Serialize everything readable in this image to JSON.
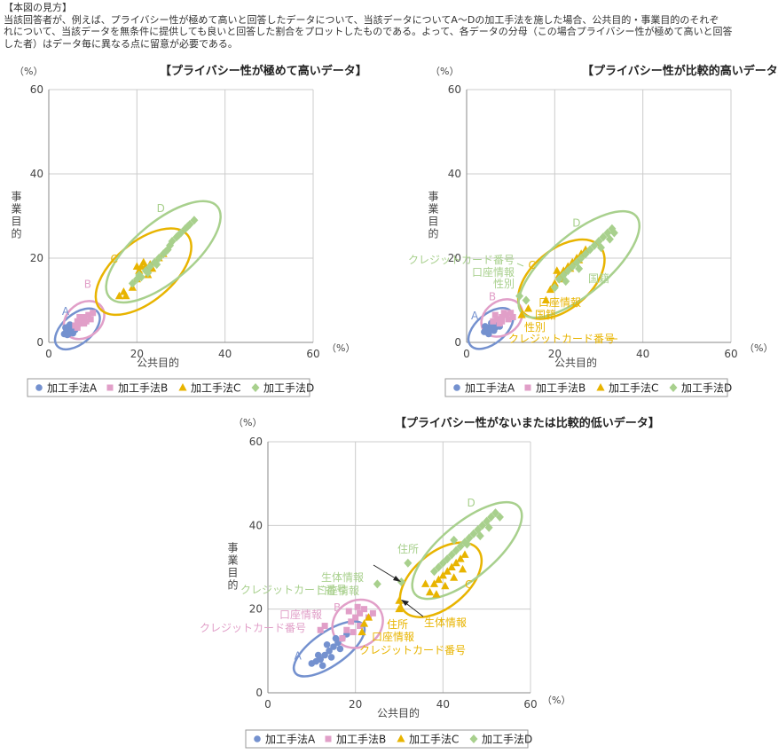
{
  "header": {
    "title": "【本図の見方】",
    "lines": [
      "当該回答者が、例えば、プライバシー性が極めて高いと回答したデータについて、当該データについてA～Dの加工手法を施した場合、公共目的・事業目的のそれぞ",
      "れについて、当該データを無条件に提供しても良いと回答した割合をプロットしたものである。よって、各データの分母（この場合プライバシー性が極めて高いと回答",
      "した者）はデータ毎に異なる点に留意が必要である。"
    ]
  },
  "colors": {
    "A": "#7491cf",
    "B": "#e19fc8",
    "C": "#e8b400",
    "D": "#a8d08d",
    "grid": "#cccccc",
    "axis": "#888888"
  },
  "chart_data": [
    {
      "type": "scatter",
      "title": "【プライバシー性が極めて高いデータ】",
      "xlabel": "公共目的",
      "ylabel": "事業目的",
      "unit": "（%）",
      "xlim": [
        0,
        60
      ],
      "ylim": [
        0,
        60
      ],
      "xticks": [
        "0",
        "20",
        "40",
        "60"
      ],
      "yticks": [
        "0",
        "20",
        "40",
        "60"
      ],
      "grid": true,
      "legend_position": "bottom",
      "series": [
        {
          "name": "加工手法A",
          "marker": "circle",
          "ellipse_label": "A",
          "points": [
            [
              3.5,
              2
            ],
            [
              4,
              2.5
            ],
            [
              4.5,
              2
            ],
            [
              4,
              3
            ],
            [
              5,
              3
            ],
            [
              5.5,
              3.5
            ],
            [
              4.5,
              3.8
            ],
            [
              5,
              2.5
            ],
            [
              6,
              3
            ],
            [
              6.5,
              4
            ],
            [
              5.5,
              2.2
            ],
            [
              3.8,
              3.5
            ],
            [
              4.2,
              1.8
            ],
            [
              6,
              3.8
            ],
            [
              4.8,
              4.2
            ]
          ]
        },
        {
          "name": "加工手法B",
          "marker": "square",
          "ellipse_label": "B",
          "points": [
            [
              6,
              4
            ],
            [
              6.5,
              5
            ],
            [
              7,
              4.5
            ],
            [
              7.5,
              5.5
            ],
            [
              8,
              6
            ],
            [
              9,
              6.5
            ],
            [
              8.5,
              5
            ],
            [
              7,
              6
            ],
            [
              9.5,
              5.5
            ],
            [
              10,
              7
            ],
            [
              6.5,
              3.5
            ],
            [
              8,
              4.5
            ]
          ]
        },
        {
          "name": "加工手法C",
          "marker": "triangle",
          "ellipse_label": "C",
          "points": [
            [
              16,
              11
            ],
            [
              17,
              12
            ],
            [
              17.5,
              11
            ],
            [
              19,
              13
            ],
            [
              20,
              15
            ],
            [
              20.5,
              17
            ],
            [
              21,
              18
            ],
            [
              22,
              18
            ],
            [
              22.5,
              16
            ],
            [
              23,
              18.5
            ],
            [
              24,
              19
            ],
            [
              25,
              20
            ],
            [
              21.5,
              19
            ],
            [
              23.5,
              17.5
            ],
            [
              26,
              21
            ],
            [
              20,
              18
            ]
          ]
        },
        {
          "name": "加工手法D",
          "marker": "diamond",
          "ellipse_label": "D",
          "points": [
            [
              19,
              14
            ],
            [
              20,
              15
            ],
            [
              21,
              15.5
            ],
            [
              22,
              17
            ],
            [
              23,
              18
            ],
            [
              24,
              19
            ],
            [
              25,
              20
            ],
            [
              26,
              21
            ],
            [
              27,
              22
            ],
            [
              28,
              24
            ],
            [
              29,
              25
            ],
            [
              30,
              26
            ],
            [
              31,
              27
            ],
            [
              32,
              28
            ],
            [
              33,
              29
            ],
            [
              22.5,
              16.5
            ],
            [
              24.5,
              18.5
            ],
            [
              27.5,
              23
            ],
            [
              29.5,
              25.5
            ],
            [
              31.5,
              27.5
            ],
            [
              20.5,
              16
            ],
            [
              26.5,
              21.5
            ]
          ]
        }
      ],
      "annotations": []
    },
    {
      "type": "scatter",
      "title": "【プライバシー性が比較的高いデータ】",
      "xlabel": "公共目的",
      "ylabel": "事業目的",
      "unit": "（%）",
      "xlim": [
        0,
        60
      ],
      "ylim": [
        0,
        60
      ],
      "xticks": [
        "0",
        "20",
        "40",
        "60"
      ],
      "yticks": [
        "0",
        "20",
        "40",
        "60"
      ],
      "grid": true,
      "legend_position": "bottom",
      "series": [
        {
          "name": "加工手法A",
          "marker": "circle",
          "ellipse_label": "A",
          "points": [
            [
              4,
              2.5
            ],
            [
              4.5,
              3
            ],
            [
              5,
              3.5
            ],
            [
              5.5,
              3
            ],
            [
              6,
              4
            ],
            [
              6.5,
              3.5
            ],
            [
              5,
              2
            ],
            [
              7,
              4.5
            ],
            [
              4.2,
              3.8
            ],
            [
              6.2,
              2.8
            ],
            [
              5.6,
              4.6
            ],
            [
              7.5,
              3.8
            ]
          ]
        },
        {
          "name": "加工手法B",
          "marker": "square",
          "ellipse_label": "B",
          "points": [
            [
              6,
              5
            ],
            [
              7,
              5.5
            ],
            [
              8,
              6
            ],
            [
              9,
              6.5
            ],
            [
              7.5,
              4.5
            ],
            [
              8.5,
              7
            ],
            [
              10,
              7
            ],
            [
              9.5,
              5.5
            ],
            [
              6.5,
              6.5
            ],
            [
              8,
              5
            ],
            [
              10.5,
              6
            ]
          ]
        },
        {
          "name": "加工手法C",
          "marker": "triangle",
          "ellipse_label": "C",
          "points": [
            [
              12.5,
              6.5
            ],
            [
              14,
              8
            ],
            [
              18,
              10
            ],
            [
              19,
              12.5
            ],
            [
              20,
              14
            ],
            [
              21,
              16
            ],
            [
              22,
              17
            ],
            [
              23,
              18
            ],
            [
              24,
              19
            ],
            [
              25,
              20
            ],
            [
              26,
              21
            ],
            [
              27,
              22
            ],
            [
              21.5,
              15
            ],
            [
              23.5,
              17.5
            ],
            [
              25.5,
              19.5
            ],
            [
              20.5,
              17
            ]
          ]
        },
        {
          "name": "加工手法D",
          "marker": "diamond",
          "ellipse_label": "D",
          "points": [
            [
              12,
              11
            ],
            [
              13.5,
              10
            ],
            [
              20,
              13
            ],
            [
              21,
              15
            ],
            [
              22,
              16
            ],
            [
              23,
              17
            ],
            [
              24,
              18
            ],
            [
              25,
              19
            ],
            [
              26,
              20
            ],
            [
              27,
              21
            ],
            [
              28,
              22
            ],
            [
              29,
              23
            ],
            [
              30,
              24
            ],
            [
              31,
              25
            ],
            [
              32,
              26
            ],
            [
              33,
              27
            ],
            [
              33.5,
              26
            ],
            [
              25.5,
              17.5
            ],
            [
              22.5,
              14.5
            ],
            [
              30.5,
              22.5
            ],
            [
              32.5,
              24.5
            ]
          ]
        }
      ],
      "annotations": [
        {
          "text": "クレジットカード番号",
          "color": "D"
        },
        {
          "text": "口座情報",
          "color": "D"
        },
        {
          "text": "性別",
          "color": "D"
        },
        {
          "text": "国籍",
          "color": "D"
        },
        {
          "text": "口座情報",
          "color": "C"
        },
        {
          "text": "国籍",
          "color": "C"
        },
        {
          "text": "性別",
          "color": "C"
        },
        {
          "text": "クレジットカード番号",
          "color": "C"
        }
      ]
    },
    {
      "type": "scatter",
      "title": "【プライバシー性がないまたは比較的低いデータ】",
      "xlabel": "公共目的",
      "ylabel": "事業目的",
      "unit": "（%）",
      "xlim": [
        0,
        60
      ],
      "ylim": [
        0,
        60
      ],
      "xticks": [
        "0",
        "20",
        "40",
        "60"
      ],
      "yticks": [
        "0",
        "20",
        "40",
        "60"
      ],
      "grid": true,
      "legend_position": "bottom",
      "series": [
        {
          "name": "加工手法A",
          "marker": "circle",
          "ellipse_label": "A",
          "points": [
            [
              10,
              7
            ],
            [
              11,
              7.5
            ],
            [
              12,
              8
            ],
            [
              13,
              9
            ],
            [
              14,
              10
            ],
            [
              15,
              11
            ],
            [
              16,
              12
            ],
            [
              17,
              13
            ],
            [
              12.5,
              6.5
            ],
            [
              14.5,
              8.5
            ],
            [
              16.5,
              10.5
            ],
            [
              11.5,
              9
            ],
            [
              13.5,
              11.5
            ],
            [
              15.5,
              13
            ],
            [
              18,
              14
            ]
          ]
        },
        {
          "name": "加工手法B",
          "marker": "square",
          "ellipse_label": "B",
          "points": [
            [
              13,
              16
            ],
            [
              12,
              15
            ],
            [
              17,
              13
            ],
            [
              18,
              15
            ],
            [
              19,
              17
            ],
            [
              20,
              18
            ],
            [
              21,
              19
            ],
            [
              22,
              20
            ],
            [
              19.5,
              14.5
            ],
            [
              21,
              16
            ],
            [
              23,
              18
            ],
            [
              18.5,
              19.5
            ],
            [
              20.5,
              20.5
            ],
            [
              24,
              19
            ]
          ]
        },
        {
          "name": "加工手法C",
          "marker": "triangle",
          "ellipse_label": "C",
          "points": [
            [
              30,
              22
            ],
            [
              30,
              20
            ],
            [
              37,
              24
            ],
            [
              38,
              26
            ],
            [
              39,
              27
            ],
            [
              40,
              28
            ],
            [
              41,
              29
            ],
            [
              42,
              30
            ],
            [
              43,
              31
            ],
            [
              44,
              32
            ],
            [
              45,
              33
            ],
            [
              38.5,
              23.5
            ],
            [
              40.5,
              25.5
            ],
            [
              42.5,
              27.5
            ],
            [
              44.5,
              29.5
            ],
            [
              36,
              26
            ],
            [
              21.5,
              14.5
            ],
            [
              22,
              16.5
            ],
            [
              23,
              18
            ]
          ]
        },
        {
          "name": "加工手法D",
          "marker": "diamond",
          "ellipse_label": "D",
          "points": [
            [
              25,
              26
            ],
            [
              30.5,
              26.5
            ],
            [
              32,
              31
            ],
            [
              38,
              29
            ],
            [
              39,
              30
            ],
            [
              40,
              31
            ],
            [
              41,
              32
            ],
            [
              42,
              33
            ],
            [
              43,
              34
            ],
            [
              44,
              35
            ],
            [
              45,
              36
            ],
            [
              46,
              37
            ],
            [
              47,
              38
            ],
            [
              48,
              39
            ],
            [
              49,
              40
            ],
            [
              50,
              41
            ],
            [
              51,
              42
            ],
            [
              52,
              43
            ],
            [
              53,
              42
            ],
            [
              42.5,
              36.5
            ],
            [
              45.5,
              35.5
            ],
            [
              48.5,
              37.5
            ],
            [
              50.5,
              39.5
            ]
          ]
        }
      ],
      "annotations": [
        {
          "text": "住所",
          "color": "D"
        },
        {
          "text": "生体情報",
          "color": "D"
        },
        {
          "text": "口座情報",
          "color": "D"
        },
        {
          "text": "クレジットカード番号",
          "color": "D"
        },
        {
          "text": "口座情報",
          "color": "B"
        },
        {
          "text": "クレジットカード番号",
          "color": "B"
        },
        {
          "text": "生体情報",
          "color": "C"
        },
        {
          "text": "住所",
          "color": "C"
        },
        {
          "text": "口座情報",
          "color": "C"
        },
        {
          "text": "クレジットカード番号",
          "color": "C"
        }
      ]
    }
  ]
}
